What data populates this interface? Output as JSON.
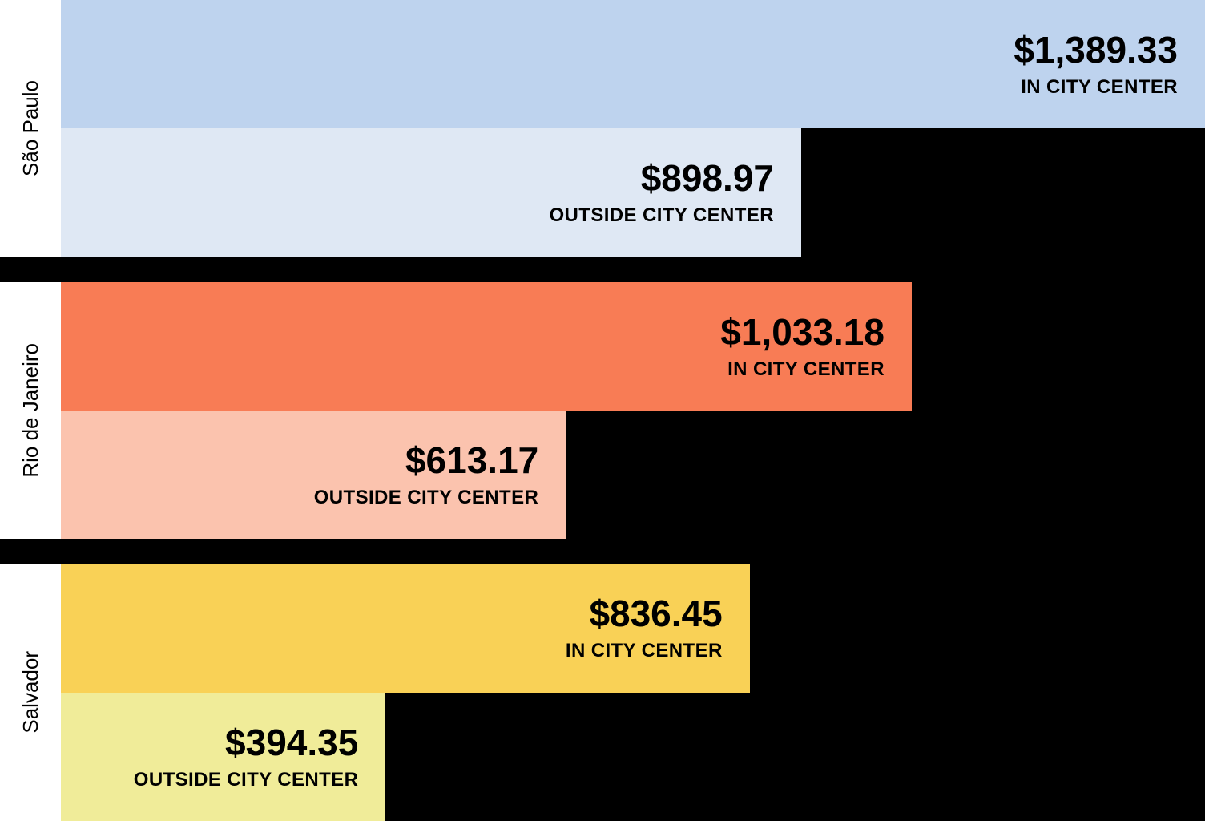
{
  "chart_data": {
    "type": "bar",
    "orientation": "horizontal",
    "currency": "$",
    "max_value": 1389.33,
    "xlim": [
      0,
      1389.33
    ],
    "grid": false,
    "legend": "none",
    "background_color": "#000000",
    "axis_strip_color": "#ffffff",
    "text_color": "#000000",
    "categories": [
      "São Paulo",
      "Rio de Janeiro",
      "Salvador"
    ],
    "series_labels": [
      "IN CITY CENTER",
      "OUTSIDE CITY CENTER"
    ],
    "groups": [
      {
        "city": "São Paulo",
        "bars": [
          {
            "label": "IN CITY CENTER",
            "value": 1389.33,
            "value_text": "$1,389.33",
            "color": "#bed3ee"
          },
          {
            "label": "OUTSIDE CITY CENTER",
            "value": 898.97,
            "value_text": "$898.97",
            "color": "#dfe8f4"
          }
        ]
      },
      {
        "city": "Rio de Janeiro",
        "bars": [
          {
            "label": "IN CITY CENTER",
            "value": 1033.18,
            "value_text": "$1,033.18",
            "color": "#f87c55"
          },
          {
            "label": "OUTSIDE CITY CENTER",
            "value": 613.17,
            "value_text": "$613.17",
            "color": "#fbc3ae"
          }
        ]
      },
      {
        "city": "Salvador",
        "bars": [
          {
            "label": "IN CITY CENTER",
            "value": 836.45,
            "value_text": "$836.45",
            "color": "#f9d156"
          },
          {
            "label": "OUTSIDE CITY CENTER",
            "value": 394.35,
            "value_text": "$394.35",
            "color": "#f0ec99"
          }
        ]
      }
    ]
  }
}
